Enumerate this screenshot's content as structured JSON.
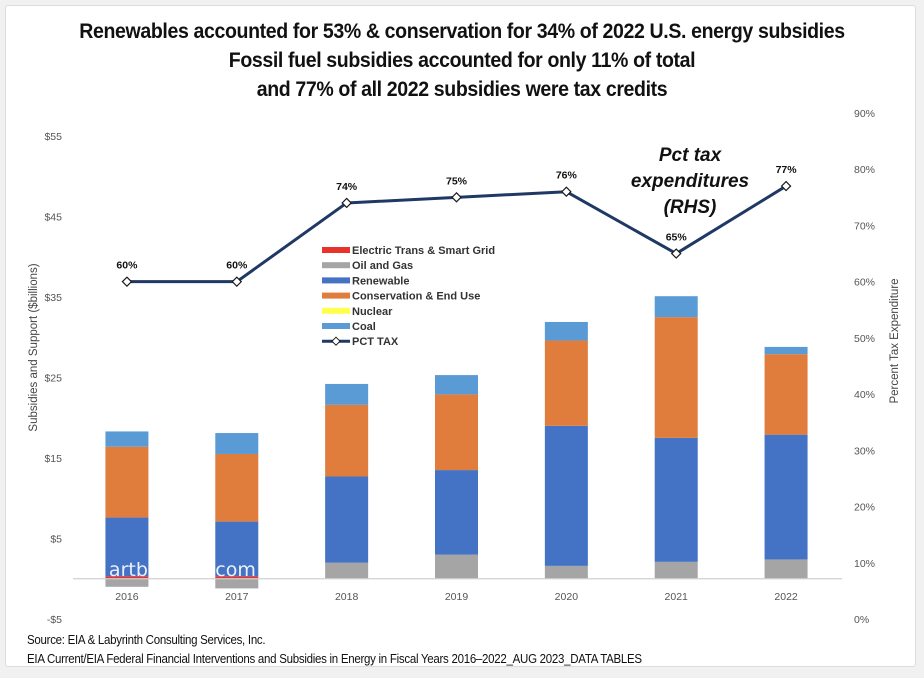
{
  "title_lines": [
    "Renewables accounted for 53% & conservation for 34% of 2022 U.S. energy subsidies",
    "Fossil fuel subsidies accounted for only 11% of total",
    "and 77% of all 2022 subsidies were tax credits"
  ],
  "footer": {
    "source": "Source: EIA & Labyrinth Consulting Services, Inc.",
    "reference": "EIA Current/EIA Federal Financial Interventions and Subsidies in Energy in Fiscal Years 2016–2022_AUG 2023_DATA TABLES"
  },
  "watermark": "artberman.com",
  "chart_data": {
    "type": "bar",
    "stacked": true,
    "title": "Renewables accounted for 53% & conservation for 34% of 2022 U.S. energy subsidies / Fossil fuel subsidies accounted for only 11% of total / and 77% of all 2022 subsidies were tax credits",
    "categories": [
      "2016",
      "2017",
      "2018",
      "2019",
      "2020",
      "2021",
      "2022"
    ],
    "ylabel": "Subsidies and Support ($billions)",
    "y2label": "Percent Tax Expenditure",
    "ylim": [
      -5,
      55
    ],
    "y_ticks": [
      -5,
      5,
      15,
      25,
      35,
      45,
      55
    ],
    "y_tick_labels": [
      "-$5",
      "$5",
      "$15",
      "$25",
      "$35",
      "$45",
      "$55"
    ],
    "y2lim": [
      0,
      90
    ],
    "y2_ticks": [
      0,
      10,
      20,
      30,
      40,
      50,
      60,
      70,
      80,
      90
    ],
    "y2_tick_labels": [
      "0%",
      "10%",
      "20%",
      "30%",
      "40%",
      "50%",
      "60%",
      "70%",
      "80%",
      "90%"
    ],
    "grid": false,
    "legend_position": "center-left",
    "series": [
      {
        "name": "Oil and Gas",
        "color": "#a5a5a5",
        "values": [
          -1.0,
          -1.2,
          2.0,
          3.0,
          1.6,
          2.1,
          2.4
        ]
      },
      {
        "name": "Electric Trans & Smart Grid",
        "color": "#e8322b",
        "values": [
          0.3,
          0.3,
          0.0,
          0.0,
          0.0,
          0.0,
          0.0
        ]
      },
      {
        "name": "Nuclear",
        "color": "#ffff4d",
        "values": [
          0.0,
          0.0,
          0.0,
          0.0,
          0.0,
          0.0,
          0.0
        ]
      },
      {
        "name": "Renewable",
        "color": "#4472c4",
        "values": [
          7.3,
          6.8,
          10.7,
          10.5,
          17.4,
          15.4,
          15.5
        ]
      },
      {
        "name": "Conservation & End Use",
        "color": "#e07d3c",
        "values": [
          8.8,
          8.4,
          8.9,
          9.4,
          10.6,
          15.0,
          10.0
        ]
      },
      {
        "name": "Coal",
        "color": "#5b9bd5",
        "values": [
          1.9,
          2.6,
          2.6,
          2.4,
          2.3,
          2.6,
          0.9
        ]
      }
    ],
    "line_series": {
      "name": "PCT TAX",
      "axis": "right",
      "color": "#1f3864",
      "values": [
        60,
        60,
        74,
        75,
        76,
        65,
        77
      ],
      "labels": [
        "60%",
        "60%",
        "74%",
        "75%",
        "76%",
        "65%",
        "77%"
      ]
    },
    "legend": [
      {
        "name": "Electric Trans & Smart Grid",
        "color": "#e8322b",
        "kind": "bar"
      },
      {
        "name": "Oil and Gas",
        "color": "#a5a5a5",
        "kind": "bar"
      },
      {
        "name": "Renewable",
        "color": "#4472c4",
        "kind": "bar"
      },
      {
        "name": "Conservation & End Use",
        "color": "#e07d3c",
        "kind": "bar"
      },
      {
        "name": "Nuclear",
        "color": "#ffff4d",
        "kind": "bar"
      },
      {
        "name": "Coal",
        "color": "#5b9bd5",
        "kind": "bar"
      },
      {
        "name": "PCT TAX",
        "color": "#1f3864",
        "kind": "line"
      }
    ],
    "annotation": [
      "Pct tax",
      "expenditures",
      "(RHS)"
    ]
  }
}
